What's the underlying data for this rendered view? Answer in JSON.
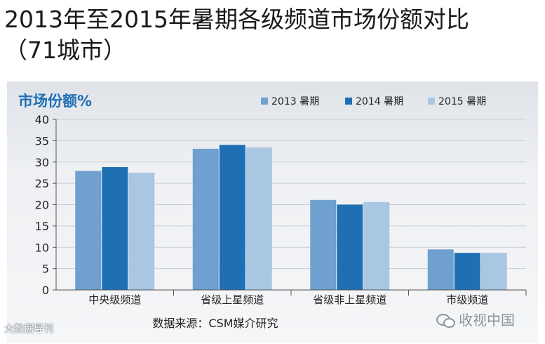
{
  "title_line1": "2013年至2015年暑期各级频道市场份额对比",
  "title_line2": "（71城市）",
  "watermark_left": "大数据导刊",
  "watermark_right": "收视中国",
  "wechat_icon": "wechat-icon",
  "colors": {
    "series_2013": "#6fa0cf",
    "series_2014": "#1f6fb5",
    "series_2015": "#a9c6e2",
    "axis_title": "#1f6fb5"
  },
  "chart_data": {
    "type": "bar",
    "ylabel": "市场份额%",
    "source": "数据来源：CSM媒介研究",
    "categories": [
      "中央级频道",
      "省级上星频道",
      "省级非上星频道",
      "市级频道"
    ],
    "series": [
      {
        "name": "2013 暑期",
        "values": [
          27.9,
          33.1,
          21.1,
          9.5
        ]
      },
      {
        "name": "2014 暑期",
        "values": [
          28.8,
          34.0,
          20.0,
          8.7
        ]
      },
      {
        "name": "2015 暑期",
        "values": [
          27.5,
          33.4,
          20.6,
          8.7
        ]
      }
    ],
    "ylim": [
      0,
      40
    ],
    "yticks": [
      0,
      5,
      10,
      15,
      20,
      25,
      30,
      35,
      40
    ],
    "legend_position": "top-right",
    "grid": true
  }
}
